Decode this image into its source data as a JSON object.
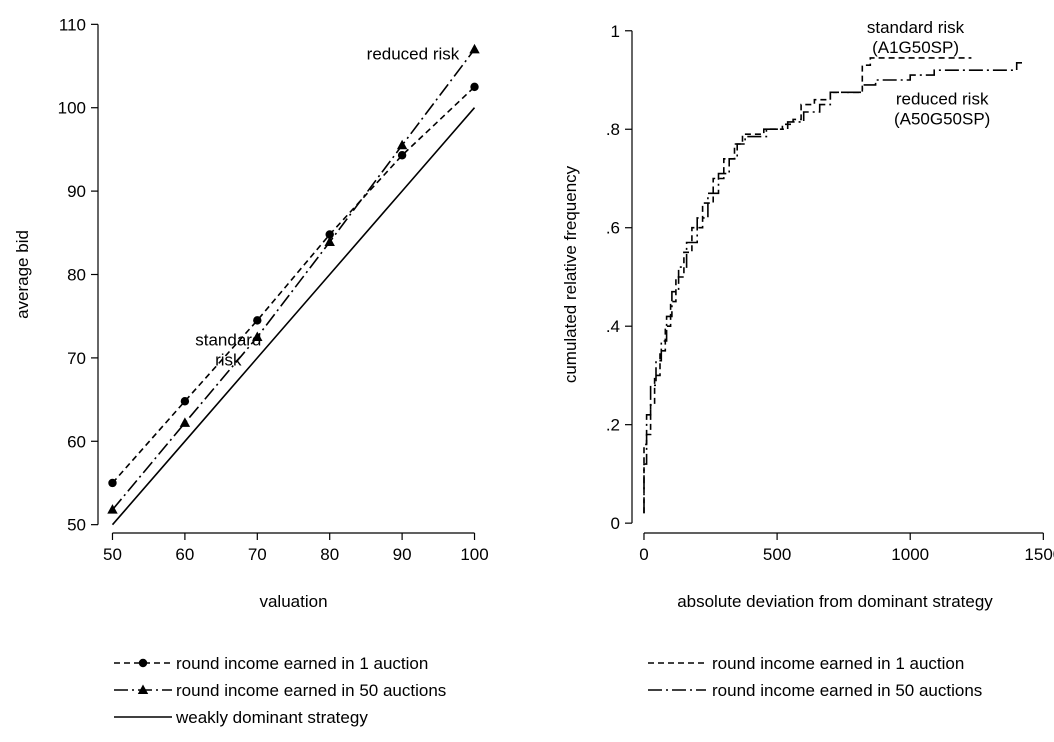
{
  "chart_data": [
    {
      "type": "line",
      "xlabel": "valuation",
      "ylabel": "average bid",
      "xlim": [
        48,
        102
      ],
      "ylim": [
        49,
        111
      ],
      "xticks": [
        50,
        60,
        70,
        80,
        90,
        100
      ],
      "yticks": [
        50,
        60,
        70,
        80,
        90,
        100,
        110
      ],
      "x": [
        50,
        60,
        70,
        80,
        90,
        100
      ],
      "series": [
        {
          "name": "round income earned in 1 auction",
          "values": [
            55,
            64.8,
            74.5,
            84.8,
            94.3,
            102.5
          ],
          "style": "dashed",
          "marker": "circle"
        },
        {
          "name": "round income earned in 50 auctions",
          "values": [
            51.8,
            62.2,
            72.5,
            83.9,
            95.5,
            107
          ],
          "style": "dashdot",
          "marker": "triangle"
        },
        {
          "name": "weakly dominant strategy",
          "values": [
            50,
            60,
            70,
            80,
            90,
            100
          ],
          "style": "solid",
          "marker": "none"
        }
      ],
      "annotations": [
        {
          "lines": [
            "reduced risk"
          ],
          "x": 91.5,
          "y": 105.8
        },
        {
          "lines": [
            "standard",
            "risk"
          ],
          "x": 66,
          "y": 71.5
        }
      ],
      "legend_position": "bottom"
    },
    {
      "type": "line",
      "xlabel": "absolute deviation from dominant strategy",
      "ylabel": "cumulated relative frequency",
      "xlim": [
        -45,
        1480
      ],
      "ylim": [
        -0.02,
        1.03
      ],
      "xticks": [
        0,
        500,
        1000,
        1500
      ],
      "yticks": [
        0,
        0.2,
        0.4,
        0.6,
        0.8,
        1
      ],
      "ytick_labels": [
        "0",
        ".2",
        ".4",
        ".6",
        ".8",
        "1"
      ],
      "series": [
        {
          "name": "round income earned in 1 auction",
          "style": "dashed",
          "points": [
            [
              0,
              0.02
            ],
            [
              0,
              0.16
            ],
            [
              10,
              0.16
            ],
            [
              10,
              0.18
            ],
            [
              25,
              0.18
            ],
            [
              25,
              0.24
            ],
            [
              40,
              0.24
            ],
            [
              40,
              0.3
            ],
            [
              60,
              0.3
            ],
            [
              60,
              0.35
            ],
            [
              80,
              0.35
            ],
            [
              80,
              0.4
            ],
            [
              100,
              0.4
            ],
            [
              100,
              0.45
            ],
            [
              120,
              0.45
            ],
            [
              120,
              0.5
            ],
            [
              150,
              0.5
            ],
            [
              150,
              0.55
            ],
            [
              180,
              0.55
            ],
            [
              180,
              0.6
            ],
            [
              220,
              0.6
            ],
            [
              220,
              0.65
            ],
            [
              260,
              0.65
            ],
            [
              260,
              0.7
            ],
            [
              300,
              0.7
            ],
            [
              300,
              0.74
            ],
            [
              340,
              0.74
            ],
            [
              340,
              0.77
            ],
            [
              370,
              0.77
            ],
            [
              370,
              0.79
            ],
            [
              450,
              0.79
            ],
            [
              450,
              0.8
            ],
            [
              520,
              0.8
            ],
            [
              520,
              0.81
            ],
            [
              560,
              0.81
            ],
            [
              560,
              0.82
            ],
            [
              590,
              0.82
            ],
            [
              590,
              0.85
            ],
            [
              640,
              0.85
            ],
            [
              640,
              0.86
            ],
            [
              700,
              0.86
            ],
            [
              700,
              0.875
            ],
            [
              820,
              0.875
            ],
            [
              820,
              0.93
            ],
            [
              850,
              0.93
            ],
            [
              850,
              0.945
            ],
            [
              1230,
              0.945
            ]
          ]
        },
        {
          "name": "round income earned in 50 auctions",
          "style": "dashdot",
          "points": [
            [
              0,
              0.02
            ],
            [
              0,
              0.12
            ],
            [
              10,
              0.12
            ],
            [
              10,
              0.22
            ],
            [
              25,
              0.22
            ],
            [
              25,
              0.28
            ],
            [
              45,
              0.28
            ],
            [
              45,
              0.33
            ],
            [
              65,
              0.33
            ],
            [
              65,
              0.37
            ],
            [
              85,
              0.37
            ],
            [
              85,
              0.42
            ],
            [
              105,
              0.42
            ],
            [
              105,
              0.47
            ],
            [
              130,
              0.47
            ],
            [
              130,
              0.52
            ],
            [
              160,
              0.52
            ],
            [
              160,
              0.57
            ],
            [
              200,
              0.57
            ],
            [
              200,
              0.62
            ],
            [
              240,
              0.62
            ],
            [
              240,
              0.67
            ],
            [
              280,
              0.67
            ],
            [
              280,
              0.71
            ],
            [
              320,
              0.71
            ],
            [
              320,
              0.74
            ],
            [
              350,
              0.74
            ],
            [
              350,
              0.77
            ],
            [
              380,
              0.77
            ],
            [
              380,
              0.785
            ],
            [
              460,
              0.785
            ],
            [
              460,
              0.8
            ],
            [
              540,
              0.8
            ],
            [
              540,
              0.815
            ],
            [
              600,
              0.815
            ],
            [
              600,
              0.835
            ],
            [
              660,
              0.835
            ],
            [
              660,
              0.85
            ],
            [
              700,
              0.85
            ],
            [
              700,
              0.875
            ],
            [
              820,
              0.875
            ],
            [
              820,
              0.89
            ],
            [
              870,
              0.89
            ],
            [
              870,
              0.9
            ],
            [
              1000,
              0.9
            ],
            [
              1000,
              0.91
            ],
            [
              1090,
              0.91
            ],
            [
              1090,
              0.92
            ],
            [
              1400,
              0.92
            ],
            [
              1400,
              0.935
            ],
            [
              1420,
              0.935
            ]
          ]
        }
      ],
      "annotations": [
        {
          "lines": [
            "standard risk",
            "(A1G50SP)"
          ],
          "x": 1020,
          "y": 0.995
        },
        {
          "lines": [
            "reduced risk",
            "(A50G50SP)"
          ],
          "x": 1120,
          "y": 0.85
        }
      ],
      "legend_position": "bottom"
    }
  ]
}
